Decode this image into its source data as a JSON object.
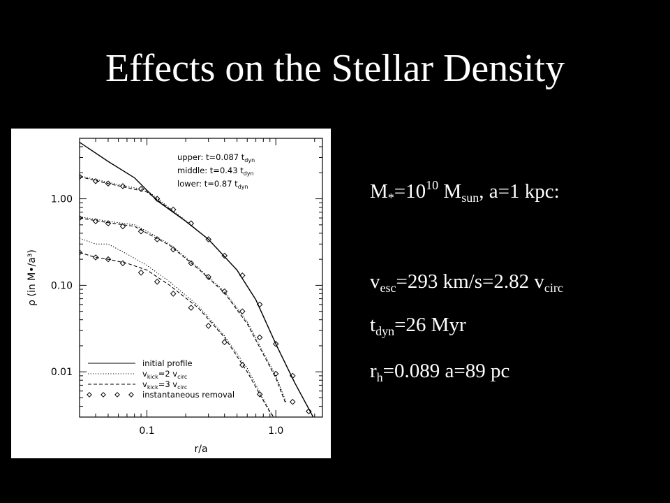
{
  "slide": {
    "title": "Effects on the Stellar Density"
  },
  "params": {
    "line1": {
      "m": "M",
      "m_sub": "*",
      "eq": "=10",
      "exp": "10",
      "msun": " M",
      "msun_sub": "sun",
      "rest": ",   a=1 kpc:"
    },
    "line2": {
      "v": "v",
      "v_sub": "esc",
      "rest": "=293 km/s=2.82 v",
      "rest_sub": "circ"
    },
    "line3": {
      "t": "t",
      "t_sub": "dyn",
      "rest": "=26 Myr"
    },
    "line4": {
      "r": "r",
      "r_sub": "h",
      "rest": "=0.089 a=89 pc"
    }
  },
  "chart_data": {
    "type": "line",
    "xlabel": "r/a",
    "ylabel": "ρ (in M•/a³)",
    "xscale": "log",
    "yscale": "log",
    "xlim": [
      0.03,
      2.3
    ],
    "ylim": [
      0.003,
      5.0
    ],
    "x_ticks": [
      {
        "v": 0.1,
        "label": "0.1"
      },
      {
        "v": 1.0,
        "label": "1.0"
      }
    ],
    "y_ticks": [
      {
        "v": 0.01,
        "label": "0.01"
      },
      {
        "v": 0.1,
        "label": "0.10"
      },
      {
        "v": 1.0,
        "label": "1.00"
      }
    ],
    "time_legend": [
      {
        "label": "upper: t=0.087 ",
        "sub": "dyn",
        "t": "t"
      },
      {
        "label": "middle: t=0.43 ",
        "sub": "dyn",
        "t": "t"
      },
      {
        "label": "lower: t=0.87 ",
        "sub": "dyn",
        "t": "t"
      }
    ],
    "style_legend": [
      {
        "style": "solid",
        "label": "initial profile"
      },
      {
        "style": "dotted",
        "label": "v",
        "sub1": "kick",
        "mid": "=2  v",
        "sub2": "circ"
      },
      {
        "style": "dashed",
        "label": "v",
        "sub1": "kick",
        "mid": "=3  v",
        "sub2": "circ"
      },
      {
        "style": "diamond",
        "label": "instantaneous removal"
      }
    ],
    "series": [
      {
        "name": "initial profile",
        "style": "solid",
        "x": [
          0.03,
          0.05,
          0.08,
          0.12,
          0.2,
          0.3,
          0.5,
          0.7,
          1.0,
          1.4,
          2.0
        ],
        "y": [
          4.5,
          2.7,
          1.75,
          0.95,
          0.55,
          0.34,
          0.15,
          0.068,
          0.021,
          0.0075,
          0.0028
        ]
      },
      {
        "name": "upper dotted",
        "style": "dotted",
        "x": [
          0.03,
          0.05,
          0.1,
          0.2,
          0.3,
          0.5,
          0.7,
          1.0,
          1.4,
          2.0
        ],
        "y": [
          1.85,
          1.55,
          1.25,
          0.56,
          0.34,
          0.15,
          0.068,
          0.021,
          0.0075,
          0.0028
        ]
      },
      {
        "name": "upper dashed",
        "style": "dashed",
        "x": [
          0.03,
          0.05,
          0.1,
          0.2,
          0.3,
          0.5,
          0.7,
          1.0,
          1.4,
          2.0
        ],
        "y": [
          1.8,
          1.5,
          1.2,
          0.55,
          0.34,
          0.15,
          0.068,
          0.021,
          0.0075,
          0.0028
        ]
      },
      {
        "name": "middle dotted",
        "style": "dotted",
        "x": [
          0.03,
          0.05,
          0.08,
          0.1,
          0.15,
          0.25,
          0.4,
          0.6,
          1.0,
          1.2
        ],
        "y": [
          0.62,
          0.55,
          0.5,
          0.42,
          0.3,
          0.16,
          0.085,
          0.038,
          0.009,
          0.0045
        ]
      },
      {
        "name": "middle dashed",
        "style": "dashed",
        "x": [
          0.03,
          0.05,
          0.08,
          0.1,
          0.15,
          0.25,
          0.4,
          0.6,
          1.0,
          1.2
        ],
        "y": [
          0.6,
          0.53,
          0.48,
          0.4,
          0.29,
          0.155,
          0.082,
          0.036,
          0.0085,
          0.0042
        ]
      },
      {
        "name": "lower dotted",
        "style": "dotted",
        "x": [
          0.03,
          0.04,
          0.05,
          0.07,
          0.1,
          0.15,
          0.25,
          0.4,
          0.6,
          0.9,
          1.0
        ],
        "y": [
          0.35,
          0.3,
          0.3,
          0.23,
          0.17,
          0.11,
          0.058,
          0.026,
          0.011,
          0.0035,
          0.0028
        ]
      },
      {
        "name": "lower dashed",
        "style": "dashed",
        "x": [
          0.03,
          0.04,
          0.05,
          0.07,
          0.1,
          0.15,
          0.25,
          0.4,
          0.6,
          0.9,
          1.0
        ],
        "y": [
          0.24,
          0.21,
          0.2,
          0.18,
          0.15,
          0.1,
          0.055,
          0.025,
          0.01,
          0.0034,
          0.0028
        ]
      },
      {
        "name": "upper removal",
        "style": "diamond",
        "x": [
          0.03,
          0.04,
          0.05,
          0.065,
          0.09,
          0.12,
          0.16,
          0.22,
          0.3,
          0.4,
          0.55,
          0.75,
          1.0,
          1.35,
          1.8
        ],
        "y": [
          1.8,
          1.6,
          1.5,
          1.4,
          1.3,
          1.0,
          0.75,
          0.52,
          0.34,
          0.22,
          0.13,
          0.06,
          0.021,
          0.009,
          0.0035
        ]
      },
      {
        "name": "middle removal",
        "style": "diamond",
        "x": [
          0.03,
          0.04,
          0.05,
          0.065,
          0.09,
          0.12,
          0.16,
          0.22,
          0.3,
          0.4,
          0.55,
          0.75,
          1.0,
          1.35
        ],
        "y": [
          0.6,
          0.55,
          0.52,
          0.48,
          0.42,
          0.34,
          0.26,
          0.18,
          0.125,
          0.085,
          0.05,
          0.025,
          0.0095,
          0.0045
        ]
      },
      {
        "name": "lower removal",
        "style": "diamond",
        "x": [
          0.03,
          0.04,
          0.05,
          0.065,
          0.09,
          0.12,
          0.16,
          0.22,
          0.3,
          0.4,
          0.55,
          0.75
        ],
        "y": [
          0.24,
          0.21,
          0.2,
          0.18,
          0.14,
          0.11,
          0.08,
          0.055,
          0.034,
          0.022,
          0.012,
          0.0055
        ]
      }
    ]
  }
}
